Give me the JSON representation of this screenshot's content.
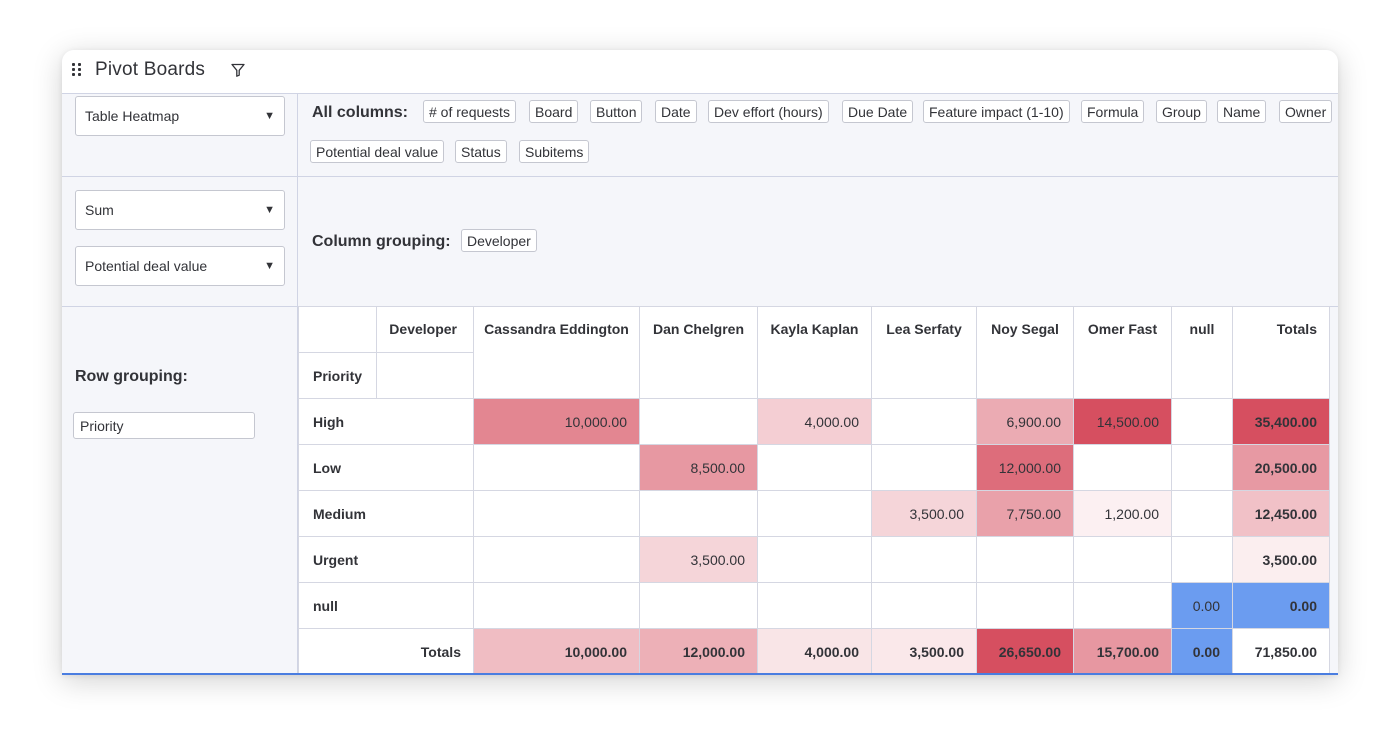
{
  "header": {
    "title": "Pivot Boards"
  },
  "controls": {
    "renderer": "Table Heatmap",
    "aggregator": "Sum",
    "value_field": "Potential deal value"
  },
  "all_columns": {
    "label": "All columns:",
    "items": [
      "# of requests",
      "Board",
      "Button",
      "Date",
      "Dev effort (hours)",
      "Due Date",
      "Feature impact (1-10)",
      "Formula",
      "Group",
      "Name",
      "Owner",
      "Potential deal value",
      "Status",
      "Subitems"
    ]
  },
  "column_grouping": {
    "label": "Column grouping:",
    "items": [
      "Developer"
    ]
  },
  "row_grouping": {
    "label": "Row grouping:",
    "items": [
      "Priority"
    ]
  },
  "pivot_table": {
    "col_attr": "Developer",
    "row_attr": "Priority",
    "columns": [
      "Cassandra Eddington",
      "Dan Chelgren",
      "Kayla Kaplan",
      "Lea Serfaty",
      "Noy Segal",
      "Omer Fast",
      "null"
    ],
    "totals_label": "Totals",
    "rows": [
      {
        "label": "High",
        "cells": [
          "10,000.00",
          "",
          "4,000.00",
          "",
          "6,900.00",
          "14,500.00",
          ""
        ],
        "total": "35,400.00"
      },
      {
        "label": "Low",
        "cells": [
          "",
          "8,500.00",
          "",
          "",
          "12,000.00",
          "",
          ""
        ],
        "total": "20,500.00"
      },
      {
        "label": "Medium",
        "cells": [
          "",
          "",
          "",
          "3,500.00",
          "7,750.00",
          "1,200.00",
          ""
        ],
        "total": "12,450.00"
      },
      {
        "label": "Urgent",
        "cells": [
          "",
          "3,500.00",
          "",
          "",
          "",
          "",
          ""
        ],
        "total": "3,500.00"
      },
      {
        "label": "null",
        "cells": [
          "",
          "",
          "",
          "",
          "",
          "",
          "0.00"
        ],
        "total": "0.00"
      }
    ],
    "col_totals": [
      "10,000.00",
      "12,000.00",
      "4,000.00",
      "3,500.00",
      "26,650.00",
      "15,700.00",
      "0.00"
    ],
    "grand_total": "71,850.00"
  },
  "colors": {
    "heat_max": "#d64f60",
    "zero_blue": "#6b9cf0",
    "panel_bg": "#f5f6fa",
    "border": "#d0d4e4"
  }
}
